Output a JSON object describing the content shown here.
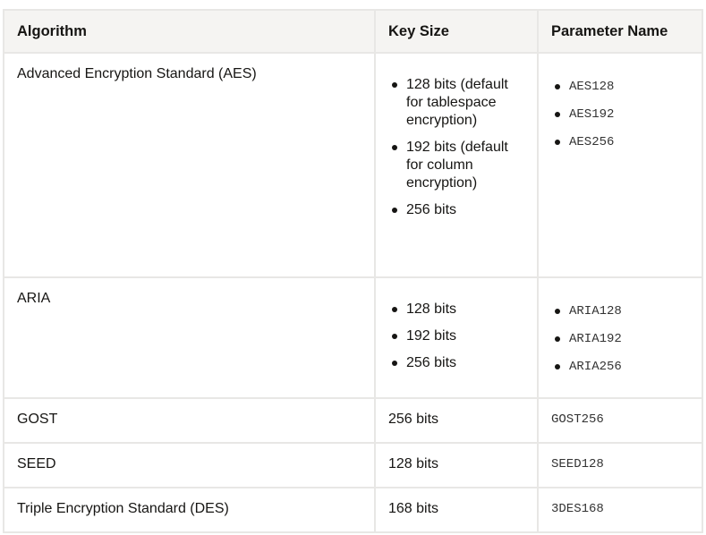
{
  "headers": [
    "Algorithm",
    "Key Size",
    "Parameter Name"
  ],
  "rows": [
    {
      "algorithm": "Advanced Encryption Standard (AES)",
      "key_sizes": [
        "128 bits (default for tablespace encryption)",
        "192 bits (default for column encryption)",
        "256 bits"
      ],
      "params": [
        "AES128",
        "AES192",
        "AES256"
      ]
    },
    {
      "algorithm": "ARIA",
      "key_sizes": [
        "128 bits",
        "192 bits",
        "256 bits"
      ],
      "params": [
        "ARIA128",
        "ARIA192",
        "ARIA256"
      ]
    },
    {
      "algorithm": "GOST",
      "key_size": "256 bits",
      "param": "GOST256"
    },
    {
      "algorithm": "SEED",
      "key_size": "128 bits",
      "param": "SEED128"
    },
    {
      "algorithm": "Triple Encryption Standard (DES)",
      "key_size": "168 bits",
      "param": "3DES168"
    }
  ]
}
